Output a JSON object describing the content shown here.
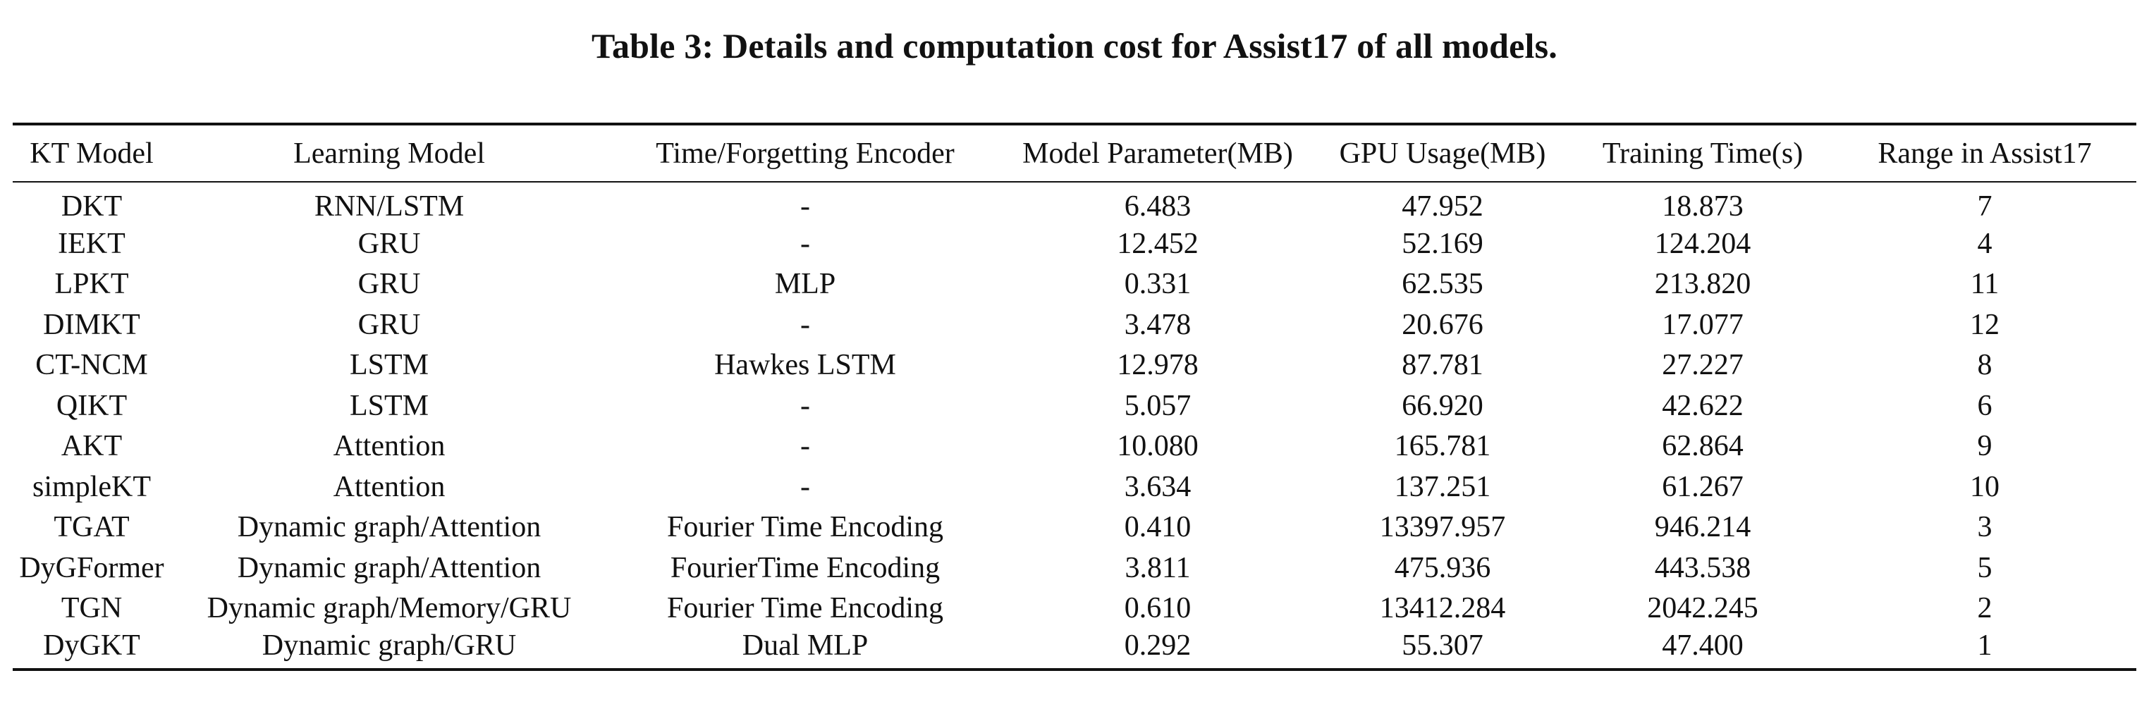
{
  "caption": "Table 3: Details and computation cost for Assist17 of all models.",
  "table": {
    "headers": [
      "KT Model",
      "Learning Model",
      "Time/Forgetting Encoder",
      "Model Parameter(MB)",
      "GPU Usage(MB)",
      "Training Time(s)",
      "Range in Assist17"
    ],
    "rows": [
      [
        "DKT",
        "RNN/LSTM",
        "-",
        "6.483",
        "47.952",
        "18.873",
        "7"
      ],
      [
        "IEKT",
        "GRU",
        "-",
        "12.452",
        "52.169",
        "124.204",
        "4"
      ],
      [
        "LPKT",
        "GRU",
        "MLP",
        "0.331",
        "62.535",
        "213.820",
        "11"
      ],
      [
        "DIMKT",
        "GRU",
        "-",
        "3.478",
        "20.676",
        "17.077",
        "12"
      ],
      [
        "CT-NCM",
        "LSTM",
        "Hawkes LSTM",
        "12.978",
        "87.781",
        "27.227",
        "8"
      ],
      [
        "QIKT",
        "LSTM",
        "-",
        "5.057",
        "66.920",
        "42.622",
        "6"
      ],
      [
        "AKT",
        "Attention",
        "-",
        "10.080",
        "165.781",
        "62.864",
        "9"
      ],
      [
        "simpleKT",
        "Attention",
        "-",
        "3.634",
        "137.251",
        "61.267",
        "10"
      ],
      [
        "TGAT",
        "Dynamic graph/Attention",
        "Fourier Time Encoding",
        "0.410",
        "13397.957",
        "946.214",
        "3"
      ],
      [
        "DyGFormer",
        "Dynamic graph/Attention",
        "FourierTime Encoding",
        "3.811",
        "475.936",
        "443.538",
        "5"
      ],
      [
        "TGN",
        "Dynamic graph/Memory/GRU",
        "Fourier Time Encoding",
        "0.610",
        "13412.284",
        "2042.245",
        "2"
      ],
      [
        "DyGKT",
        "Dynamic graph/GRU",
        "Dual MLP",
        "0.292",
        "55.307",
        "47.400",
        "1"
      ]
    ]
  }
}
